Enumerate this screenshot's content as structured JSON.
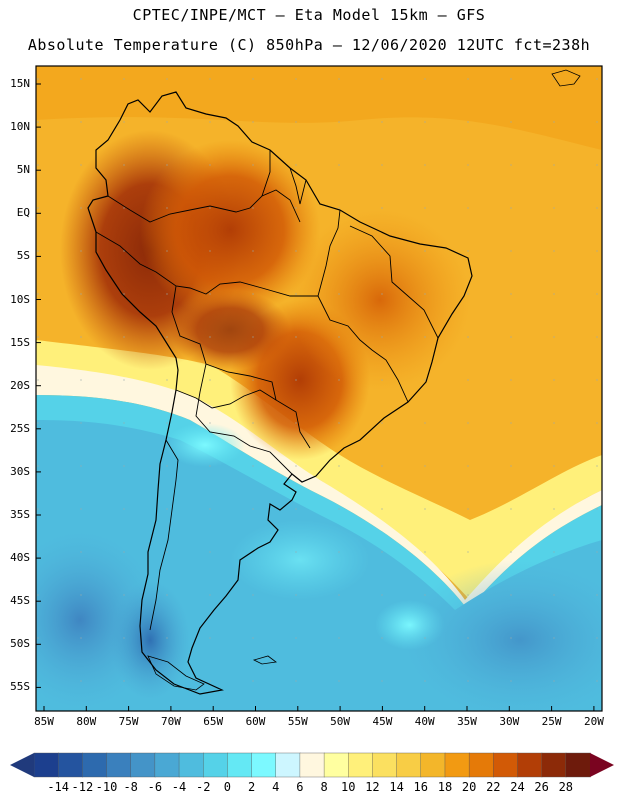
{
  "header": {
    "line1": "CPTEC/INPE/MCT –  Eta Model 15km – GFS",
    "line2": "Absolute Temperature (C) 850hPa – 12/06/2020 12UTC fct=238h"
  },
  "map": {
    "lat_labels": [
      "15N",
      "10N",
      "5N",
      "EQ",
      "5S",
      "10S",
      "15S",
      "20S",
      "25S",
      "30S",
      "35S",
      "40S",
      "45S",
      "50S",
      "55S"
    ],
    "lon_labels": [
      "85W",
      "80W",
      "75W",
      "70W",
      "65W",
      "60W",
      "55W",
      "50W",
      "45W",
      "40W",
      "35W",
      "30W",
      "25W",
      "20W"
    ]
  },
  "colorbar": {
    "labels": [
      "-14",
      "-12",
      "-10",
      "-8",
      "-6",
      "-4",
      "-2",
      "0",
      "2",
      "4",
      "6",
      "8",
      "10",
      "12",
      "14",
      "16",
      "18",
      "20",
      "22",
      "24",
      "26",
      "28"
    ],
    "colors": [
      "#1c3f8e",
      "#24549f",
      "#2d6aae",
      "#3a80bd",
      "#4494c8",
      "#4aa8d4",
      "#4fbcde",
      "#55d2e8",
      "#64e8f4",
      "#7cf9ff",
      "#cdf6ff",
      "#fff7df",
      "#ffffa0",
      "#fff07a",
      "#fbe060",
      "#f8cd45",
      "#f3b62a",
      "#f29a12",
      "#e57a08",
      "#d25a06",
      "#b23e06",
      "#8c2a08",
      "#6e1b0c"
    ],
    "under_color": "#203a7c",
    "over_color": "#7a0420"
  }
}
